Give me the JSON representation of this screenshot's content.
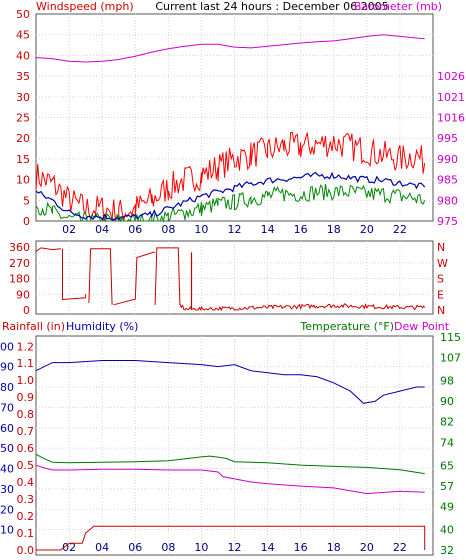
{
  "chart_data": [
    {
      "panel": "wind_baro",
      "type": "line",
      "title": "Current last 24 hours : December 06 2005",
      "left_label": "Windspeed (mph)",
      "right_label": "Barometer (mb)",
      "x_ticks": [
        "02",
        "04",
        "06",
        "08",
        "10",
        "12",
        "14",
        "16",
        "18",
        "20",
        "22"
      ],
      "left_ticks": [
        "0",
        "5",
        "10",
        "15",
        "20",
        "25",
        "30",
        "35",
        "40",
        "45",
        "50"
      ],
      "right_ticks": [
        "975",
        "980",
        "985",
        "990",
        "995",
        "1016",
        "1021",
        "1026"
      ],
      "xlim": [
        0,
        24
      ],
      "ylim_left": [
        0,
        50
      ],
      "grid": true,
      "colors": {
        "gust": "#ff0000",
        "average": "#0000aa",
        "direction_speed": "#008800",
        "barometer": "#cc00cc"
      },
      "barometer_series": {
        "x": [
          0,
          1,
          2,
          3,
          4,
          5,
          6,
          7,
          8,
          9,
          10,
          11,
          12,
          13,
          14,
          15,
          16,
          17,
          18,
          19,
          20,
          21,
          22,
          23,
          23.5
        ],
        "values": [
          39.5,
          39.2,
          38.6,
          38.4,
          38.6,
          39.0,
          39.8,
          40.8,
          41.6,
          42.2,
          42.7,
          42.7,
          42.0,
          41.8,
          42.2,
          42.6,
          43.0,
          43.3,
          43.5,
          44.0,
          44.6,
          45.0,
          44.6,
          44.2,
          44.0
        ]
      },
      "average_series": {
        "x": [
          0,
          1,
          2,
          3,
          4,
          5,
          6,
          7,
          8,
          9,
          10,
          11,
          12,
          13,
          14,
          15,
          16,
          17,
          18,
          19,
          20,
          21,
          22,
          23,
          23.5
        ],
        "values": [
          7,
          5,
          2,
          1.2,
          1,
          0.8,
          1,
          1.5,
          3,
          4.5,
          6,
          7,
          8,
          9,
          9.8,
          10.2,
          10.5,
          11,
          11,
          10.5,
          10,
          9.8,
          9.2,
          8.5,
          8.2
        ]
      },
      "gust_series": {
        "x": [
          0,
          1,
          2,
          3,
          4,
          5,
          6,
          7,
          8,
          9,
          10,
          11,
          12,
          13,
          14,
          15,
          16,
          17,
          18,
          19,
          20,
          21,
          22,
          23,
          23.5
        ],
        "values": [
          11,
          9,
          5,
          3,
          3,
          2,
          3,
          5,
          8,
          10,
          11,
          13,
          15,
          16,
          17,
          18,
          18,
          18.5,
          19,
          18,
          17,
          16,
          15,
          16,
          14
        ]
      },
      "low_series": {
        "x": [
          0,
          1,
          2,
          3,
          4,
          5,
          6,
          7,
          8,
          9,
          10,
          11,
          12,
          13,
          14,
          15,
          16,
          17,
          18,
          19,
          20,
          21,
          22,
          23,
          23.5
        ],
        "values": [
          4,
          2,
          0.5,
          0,
          0,
          0,
          0,
          0,
          1,
          2,
          3,
          4,
          4.5,
          5.5,
          6,
          6.5,
          6.5,
          7,
          7,
          7,
          6.5,
          6.5,
          6,
          5.5,
          5
        ]
      }
    },
    {
      "panel": "wind_direction",
      "type": "scatter",
      "left_ticks": [
        "0",
        "90",
        "180",
        "270",
        "360"
      ],
      "right_ticks": [
        "N",
        "W",
        "S",
        "E",
        "N"
      ],
      "ylim": [
        0,
        360
      ],
      "color": "#cc0000",
      "segments": [
        {
          "x": [
            0,
            0.3,
            1.0,
            1.5
          ],
          "values": [
            335,
            355,
            345,
            350
          ]
        },
        {
          "x": [
            1.6,
            1.6,
            3.0,
            3.0
          ],
          "values": [
            350,
            60,
            70,
            90
          ]
        },
        {
          "x": [
            3.2,
            3.3,
            4.5,
            4.6
          ],
          "values": [
            40,
            350,
            350,
            30
          ]
        },
        {
          "x": [
            4.7,
            5.9,
            6.0
          ],
          "values": [
            30,
            60,
            60
          ]
        },
        {
          "x": [
            6.0,
            6.1,
            7.1,
            7.2
          ],
          "values": [
            60,
            300,
            330,
            330
          ]
        },
        {
          "x": [
            7.2,
            7.3,
            8.6,
            8.7
          ],
          "values": [
            30,
            355,
            355,
            30
          ]
        },
        {
          "x": [
            8.7,
            9.0,
            10.0,
            12.0,
            14.0,
            16.0,
            18.0,
            20.0,
            22.0,
            23.5
          ],
          "values": [
            30,
            5,
            5,
            10,
            15,
            20,
            25,
            20,
            15,
            15
          ]
        }
      ],
      "spike": {
        "x": 9.4,
        "values": [
          0,
          330
        ]
      }
    },
    {
      "panel": "rain_humidity_temp",
      "type": "line",
      "left_labels": [
        "Rainfall (in)",
        "Humidity (%)"
      ],
      "right_labels": [
        "Temperature (°F)",
        "Dew Point"
      ],
      "x_ticks": [
        "02",
        "04",
        "06",
        "08",
        "10",
        "12",
        "14",
        "16",
        "18",
        "20",
        "22"
      ],
      "rain_ticks": [
        "0.0",
        "0.1",
        "0.2",
        "0.3",
        "0.4",
        "0.5",
        "0.6",
        "0.7",
        "0.8",
        "0.9",
        "1.0",
        "1.1",
        "1.2"
      ],
      "humidity_ticks": [
        "10",
        "20",
        "30",
        "40",
        "50",
        "60",
        "70",
        "80",
        "90",
        "100"
      ],
      "temp_ticks": [
        "32",
        "40",
        "49",
        "57",
        "65",
        "74",
        "82",
        "90",
        "98",
        "107",
        "115"
      ],
      "rain_lim": [
        0,
        1.2
      ],
      "humidity_lim": [
        0,
        100
      ],
      "temp_lim": [
        32,
        115
      ],
      "colors": {
        "rain": "#cc0000",
        "humidity": "#0000aa",
        "temperature": "#007700",
        "dew_point": "#cc00cc"
      },
      "humidity_series": {
        "x": [
          0,
          0.5,
          1,
          2,
          4,
          6,
          8,
          10,
          11,
          12,
          13,
          14,
          15,
          16,
          17,
          18,
          19,
          19.8,
          20.5,
          21,
          22,
          23,
          23.5
        ],
        "values": [
          88,
          90,
          92,
          92,
          93,
          93,
          92,
          91,
          90,
          91,
          88,
          87,
          86,
          86,
          85,
          82,
          78,
          72,
          73,
          76,
          78,
          80,
          80
        ]
      },
      "temperature_series": {
        "x": [
          0,
          0.5,
          1,
          2,
          4,
          6,
          8,
          10,
          10.5,
          11,
          11.5,
          12,
          14,
          16,
          18,
          20,
          22,
          23.5
        ],
        "values": [
          69.3,
          67.6,
          66.2,
          66.0,
          66.2,
          66.4,
          66.8,
          68.3,
          68.6,
          68.2,
          67.7,
          66.4,
          66.0,
          65.1,
          64.6,
          64.2,
          63.3,
          61.8
        ]
      },
      "dew_point_series": {
        "x": [
          0,
          0.5,
          1,
          2,
          4,
          6,
          8,
          10,
          11,
          11.3,
          12,
          13,
          14,
          16,
          18,
          20,
          22,
          23.5
        ],
        "values": [
          65.0,
          64.0,
          63.2,
          63.2,
          63.5,
          63.5,
          63.2,
          63.2,
          62.4,
          60.6,
          59.7,
          58.5,
          57.8,
          56.9,
          56.2,
          54.0,
          54.9,
          54.5
        ]
      },
      "rain_series": {
        "x": [
          0,
          1.5,
          2.0,
          2.8,
          3.0,
          3.5,
          23.5,
          23.5
        ],
        "values": [
          0.0,
          0.0,
          0.04,
          0.04,
          0.1,
          0.14,
          0.14,
          0.0
        ]
      }
    }
  ]
}
